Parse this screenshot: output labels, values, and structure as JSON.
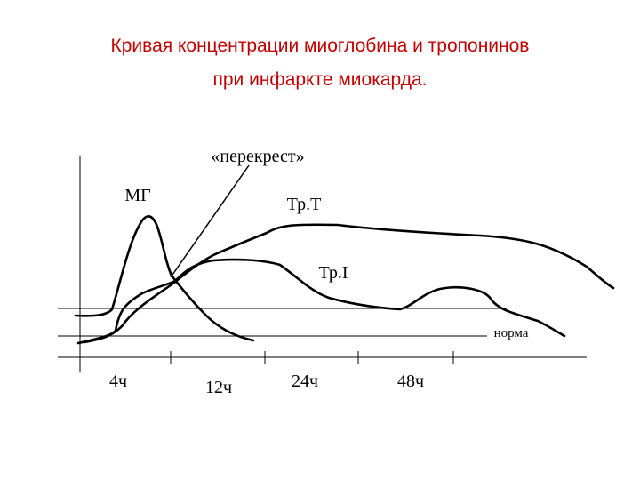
{
  "header": {
    "title": [
      "Кривая концентрации миоглобина и тропонинов",
      "при инфаркте миокарда."
    ]
  },
  "diagram": {
    "annotation": "«перекрест»",
    "curves": [
      "МГ",
      "Тр.Т",
      "Тр.I"
    ],
    "norm_label": "норма",
    "time_labels": [
      "4ч",
      "12ч",
      "24ч",
      "48ч"
    ]
  }
}
